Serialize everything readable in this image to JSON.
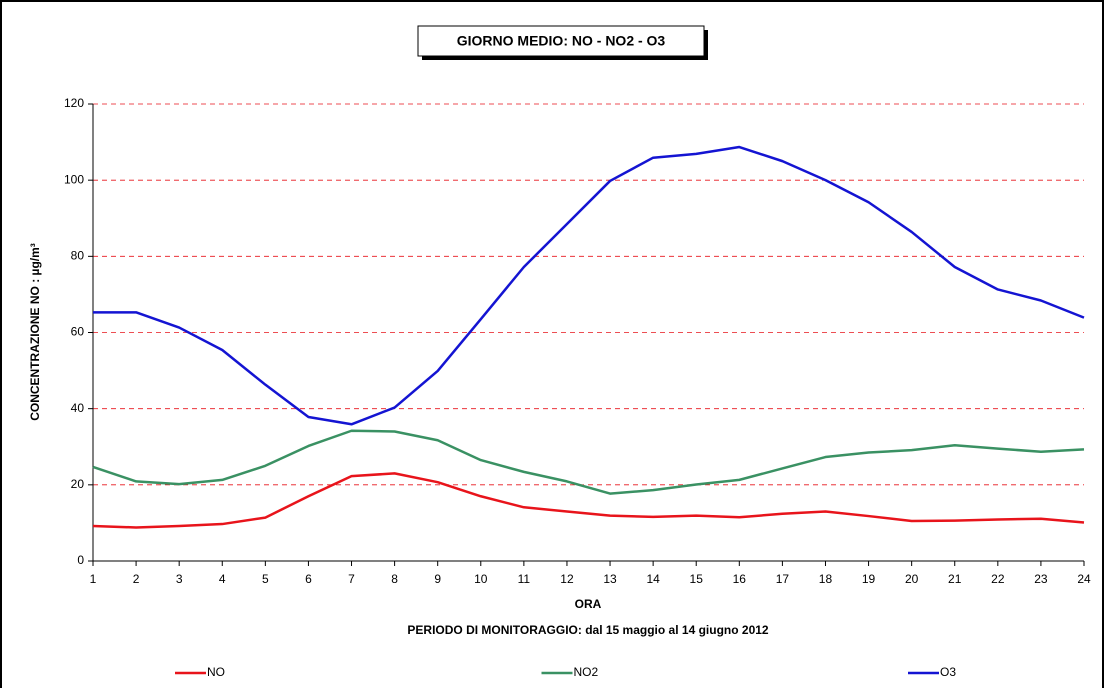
{
  "chart_data": {
    "type": "line",
    "title": "GIORNO MEDIO: NO - NO2 - O3",
    "x_label": "ORA",
    "subtitle": "PERIODO DI MONITORAGGIO: dal 15 maggio al 14 giugno 2012",
    "y_label": "CONCENTRAZIONE NO : µg/m³",
    "x": [
      1,
      2,
      3,
      4,
      5,
      6,
      7,
      8,
      9,
      10,
      11,
      12,
      13,
      14,
      15,
      16,
      17,
      18,
      19,
      20,
      21,
      22,
      23,
      24
    ],
    "xlim": [
      1,
      24
    ],
    "xticks": [
      1,
      2,
      3,
      4,
      5,
      6,
      7,
      8,
      9,
      10,
      11,
      12,
      13,
      14,
      15,
      16,
      17,
      18,
      19,
      20,
      21,
      22,
      23,
      24
    ],
    "ylim": [
      0,
      120
    ],
    "yticks": [
      0,
      20,
      40,
      60,
      80,
      100,
      120
    ],
    "grid": true,
    "legend": "bottom",
    "series": [
      {
        "name": "NO",
        "color": "#e8141b",
        "values": [
          9.2,
          8.8,
          9.2,
          9.7,
          11.4,
          17,
          22.3,
          23,
          20.7,
          17,
          14.1,
          13,
          11.9,
          11.6,
          11.9,
          11.5,
          12.4,
          13,
          11.8,
          10.5,
          10.6,
          10.9,
          11.1,
          10.1
        ]
      },
      {
        "name": "NO2",
        "color": "#3a9163",
        "values": [
          24.7,
          20.9,
          20.2,
          21.3,
          25,
          30.2,
          34.2,
          34,
          31.7,
          26.5,
          23.4,
          20.9,
          17.7,
          18.6,
          20.1,
          21.3,
          24.3,
          27.3,
          28.5,
          29.1,
          30.4,
          29.5,
          28.7,
          29.3
        ]
      },
      {
        "name": "O3",
        "color": "#1414d2",
        "values": [
          65.3,
          65.3,
          61.3,
          55.4,
          46.3,
          37.8,
          35.9,
          40.3,
          49.9,
          63.5,
          77.2,
          88.5,
          99.8,
          105.9,
          106.9,
          108.7,
          105,
          100,
          94.2,
          86.4,
          77.2,
          71.3,
          68.4,
          63.9
        ]
      }
    ]
  }
}
